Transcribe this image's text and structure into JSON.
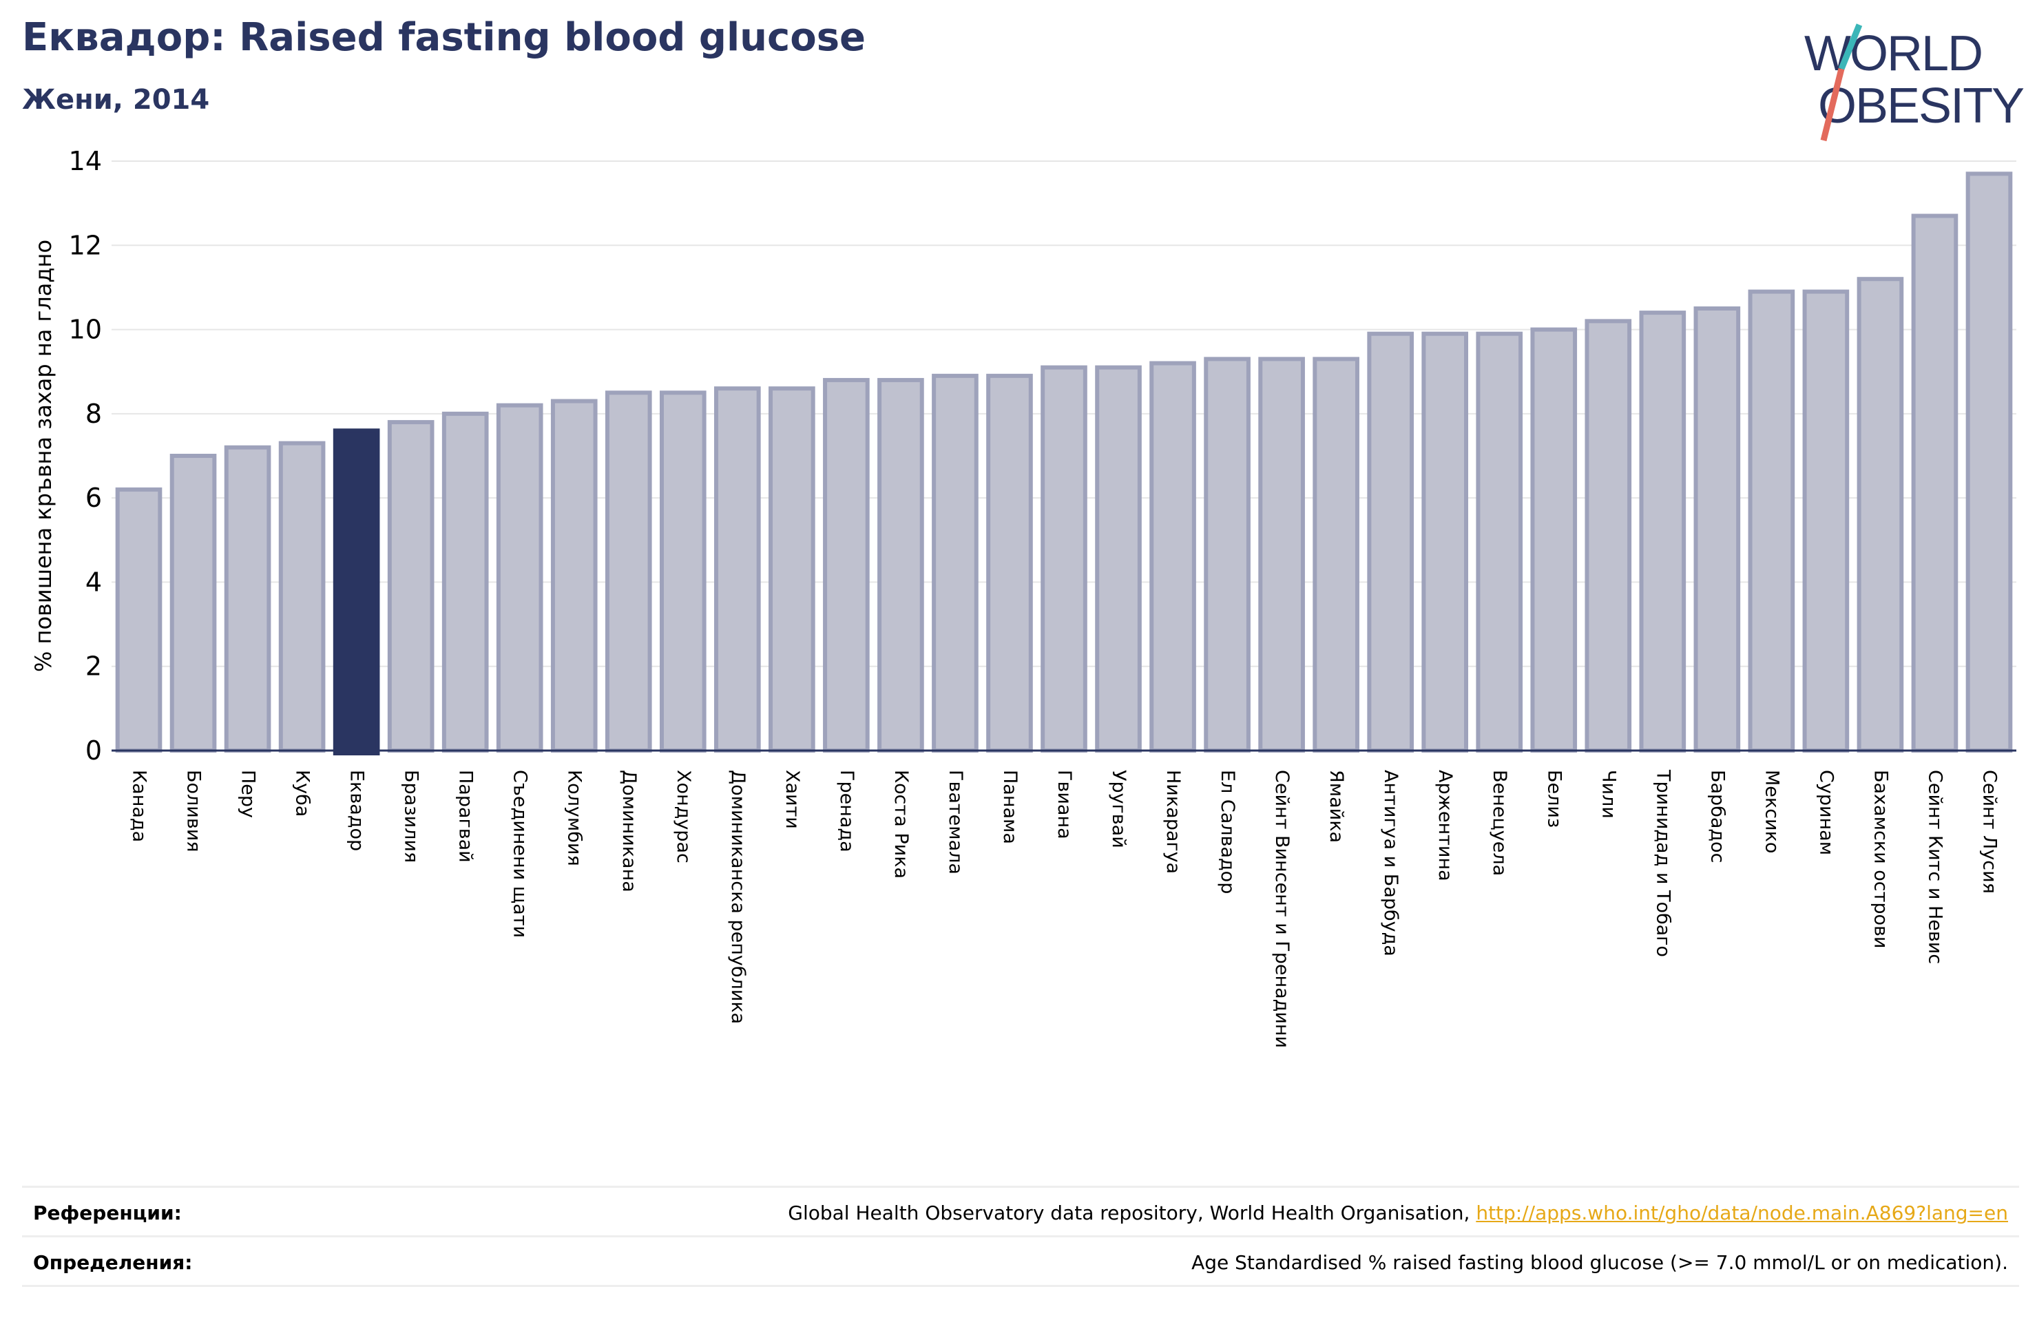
{
  "title": "Еквадор: Raised fasting blood glucose",
  "subtitle": "Жени, 2014",
  "logo": {
    "line1": "WORLD",
    "line2": "OBESITY"
  },
  "colors": {
    "bar": "#bfc1cf",
    "bar_edge": "#9ea2bb",
    "highlight": "#2a3561",
    "text": "#2a3561",
    "link": "#e6a817"
  },
  "chart_data": {
    "type": "bar",
    "ylabel": "% повишена кръвна захар на гладно",
    "xlabel": "",
    "ylim": [
      0,
      14
    ],
    "yticks": [
      0,
      2,
      4,
      6,
      8,
      10,
      12,
      14
    ],
    "grid": true,
    "highlight_category": "Еквадор",
    "categories": [
      "Канада",
      "Боливия",
      "Перу",
      "Куба",
      "Еквадор",
      "Бразилия",
      "Парагвай",
      "Съединени щати",
      "Колумбия",
      "Доминикана",
      "Хондурас",
      "Доминиканска република",
      "Хаити",
      "Гренада",
      "Коста Рика",
      "Гватемала",
      "Панама",
      "Гвиана",
      "Уругвай",
      "Никарагуа",
      "Ел Салвадор",
      "Сейнт Винсент и Гренадини",
      "Ямайка",
      "Антигуа и Барбуда",
      "Аржентина",
      "Венецуела",
      "Белиз",
      "Чили",
      "Тринидад и Тобаго",
      "Барбадос",
      "Мексико",
      "Суринам",
      "Бахамски острови",
      "Сейнт Китс и Невис",
      "Сейнт Лусия"
    ],
    "values": [
      6.2,
      7.0,
      7.2,
      7.3,
      7.6,
      7.8,
      8.0,
      8.2,
      8.3,
      8.5,
      8.5,
      8.6,
      8.6,
      8.8,
      8.8,
      8.9,
      8.9,
      9.1,
      9.1,
      9.2,
      9.3,
      9.3,
      9.3,
      9.9,
      9.9,
      9.9,
      10.0,
      10.2,
      10.4,
      10.5,
      10.9,
      10.9,
      11.2,
      12.7,
      13.7
    ]
  },
  "footer": {
    "references_label": "Референции:",
    "references_text": "Global Health Observatory data repository, World Health Organisation, ",
    "references_link": "http://apps.who.int/gho/data/node.main.A869?lang=en",
    "definitions_label": "Определения:",
    "definitions_text": "Age Standardised % raised fasting blood glucose (>= 7.0 mmol/L or on medication)."
  }
}
